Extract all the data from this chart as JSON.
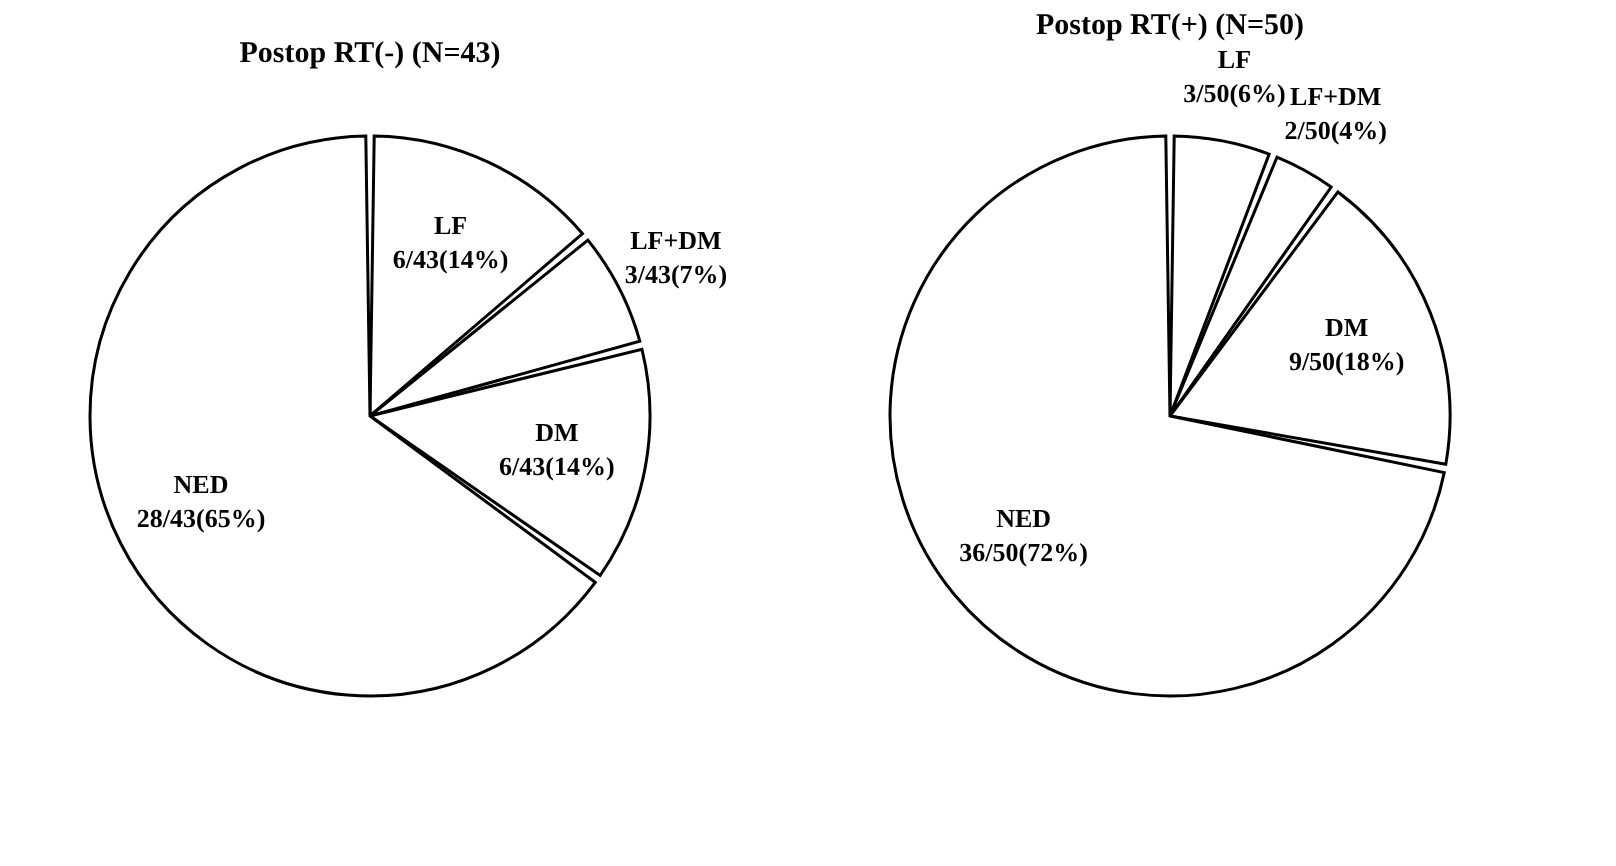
{
  "chart_data": [
    {
      "type": "pie",
      "title": "Postop RT(-) (N=43)",
      "categories": [
        "LF",
        "LF+DM",
        "DM",
        "NED"
      ],
      "values": [
        6,
        3,
        6,
        28
      ],
      "colors": [
        "#ffffff",
        "#ffffff",
        "#ffffff",
        "#ffffff"
      ],
      "value_labels": [
        "6/43(14%)",
        "3/43(7%)",
        "6/43(14%)",
        "28/43(65%)"
      ],
      "legend": false
    },
    {
      "type": "pie",
      "title": "Postop RT(+) (N=50)",
      "categories": [
        "LF",
        "LF+DM",
        "DM",
        "NED"
      ],
      "values": [
        3,
        2,
        9,
        36
      ],
      "colors": [
        "#ffffff",
        "#ffffff",
        "#ffffff",
        "#ffffff"
      ],
      "value_labels": [
        "3/50(6%)",
        "2/50(4%)",
        "9/50(18%)",
        "36/50(72%)"
      ],
      "legend": false
    }
  ]
}
